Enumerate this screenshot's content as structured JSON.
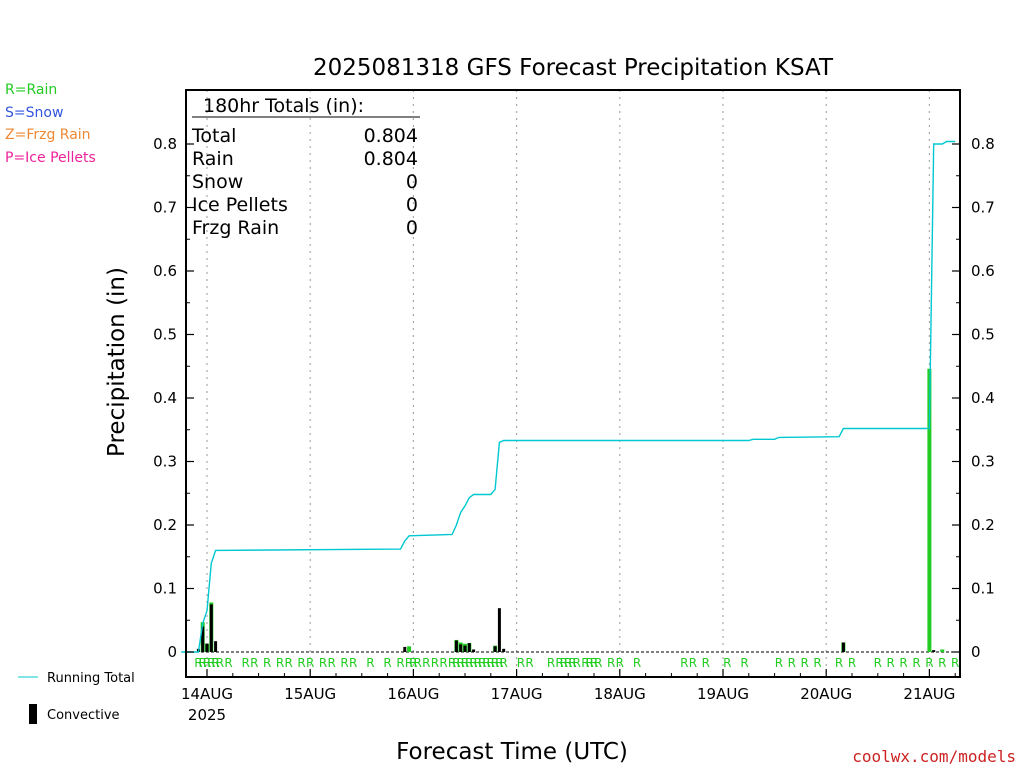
{
  "header": {
    "title": "2025081318 GFS Forecast Precipitation KSAT"
  },
  "type_legend": [
    {
      "label": "R=Rain",
      "color": "#22cc22"
    },
    {
      "label": "S=Snow",
      "color": "#3355dd"
    },
    {
      "label": "Z=Frzg Rain",
      "color": "#ee8833"
    },
    {
      "label": "P=Ice Pellets",
      "color": "#ee2299"
    }
  ],
  "totals_box": {
    "heading": "180hr Totals (in):",
    "rows": [
      {
        "label": "Total",
        "value": "0.804"
      },
      {
        "label": "Rain",
        "value": "0.804"
      },
      {
        "label": "Snow",
        "value": "0"
      },
      {
        "label": "Ice Pellets",
        "value": "0"
      },
      {
        "label": "Frzg Rain",
        "value": "0"
      }
    ]
  },
  "series_legend": {
    "running_total": "Running Total",
    "convective": "Convective"
  },
  "colors": {
    "running_total": "#00c8d0",
    "precip_bar": "#22cc22",
    "convective_bar": "#000000",
    "rain_marker": "#22cc22",
    "grid": "#aaaaaa"
  },
  "footer": {
    "credit": "coolwx.com/models"
  },
  "chart_data": {
    "type": "bar",
    "title": "2025081318 GFS Forecast Precipitation KSAT",
    "xlabel": "Forecast Time (UTC)",
    "ylabel": "Precipitation (in)",
    "ylim": [
      0,
      0.88
    ],
    "yticks": [
      0,
      0.1,
      0.2,
      0.3,
      0.4,
      0.5,
      0.6,
      0.7,
      0.8
    ],
    "ytick_labels": [
      "0",
      "0.1",
      "0.2",
      "0.3",
      "0.4",
      "0.5",
      "0.6",
      "0.7",
      "0.8"
    ],
    "x_start": "2025-08-13 18Z",
    "x_end": "2025-08-21 06Z",
    "xticks": [
      {
        "label": "14AUG",
        "sub": "2025",
        "time": "2025-08-14 00Z"
      },
      {
        "label": "15AUG",
        "time": "2025-08-15 00Z"
      },
      {
        "label": "16AUG",
        "time": "2025-08-16 00Z"
      },
      {
        "label": "17AUG",
        "time": "2025-08-17 00Z"
      },
      {
        "label": "18AUG",
        "time": "2025-08-18 00Z"
      },
      {
        "label": "19AUG",
        "time": "2025-08-19 00Z"
      },
      {
        "label": "20AUG",
        "time": "2025-08-20 00Z"
      },
      {
        "label": "21AUG",
        "time": "2025-08-21 00Z"
      }
    ],
    "grid": "vertical dotted at day boundaries",
    "series": [
      {
        "name": "Running Total",
        "type": "line",
        "points": [
          [
            "2025-08-13 18Z",
            0
          ],
          [
            "2025-08-13 22Z",
            0
          ],
          [
            "2025-08-13 23Z",
            0.045
          ],
          [
            "2025-08-14 00Z",
            0.065
          ],
          [
            "2025-08-14 01Z",
            0.14
          ],
          [
            "2025-08-14 02Z",
            0.16
          ],
          [
            "2025-08-15 21Z",
            0.162
          ],
          [
            "2025-08-15 22Z",
            0.175
          ],
          [
            "2025-08-15 23Z",
            0.183
          ],
          [
            "2025-08-16 09Z",
            0.185
          ],
          [
            "2025-08-16 10Z",
            0.2
          ],
          [
            "2025-08-16 11Z",
            0.22
          ],
          [
            "2025-08-16 12Z",
            0.23
          ],
          [
            "2025-08-16 13Z",
            0.243
          ],
          [
            "2025-08-16 14Z",
            0.248
          ],
          [
            "2025-08-16 18Z",
            0.248
          ],
          [
            "2025-08-16 19Z",
            0.256
          ],
          [
            "2025-08-16 20Z",
            0.33
          ],
          [
            "2025-08-16 21Z",
            0.333
          ],
          [
            "2025-08-19 06Z",
            0.333
          ],
          [
            "2025-08-19 07Z",
            0.335
          ],
          [
            "2025-08-19 12Z",
            0.335
          ],
          [
            "2025-08-19 13Z",
            0.338
          ],
          [
            "2025-08-20 03Z",
            0.339
          ],
          [
            "2025-08-20 04Z",
            0.352
          ],
          [
            "2025-08-21 00Z",
            0.352
          ],
          [
            "2025-08-21 01Z",
            0.8
          ],
          [
            "2025-08-21 03Z",
            0.8
          ],
          [
            "2025-08-21 04Z",
            0.804
          ],
          [
            "2025-08-21 06Z",
            0.804
          ]
        ]
      },
      {
        "name": "Precipitation",
        "type": "bar",
        "points": [
          [
            "2025-08-13 23Z",
            0.047
          ],
          [
            "2025-08-14 00Z",
            0.013
          ],
          [
            "2025-08-14 01Z",
            0.078
          ],
          [
            "2025-08-15 23Z",
            0.009
          ],
          [
            "2025-08-16 10Z",
            0.019
          ],
          [
            "2025-08-16 11Z",
            0.015
          ],
          [
            "2025-08-16 12Z",
            0.013
          ],
          [
            "2025-08-16 13Z",
            0.014
          ],
          [
            "2025-08-16 19Z",
            0.01
          ],
          [
            "2025-08-20 04Z",
            0.015
          ],
          [
            "2025-08-21 00Z",
            0.446
          ],
          [
            "2025-08-21 03Z",
            0.004
          ]
        ]
      },
      {
        "name": "Convective",
        "type": "bar",
        "points": [
          [
            "2025-08-13 22Z",
            0.005
          ],
          [
            "2025-08-13 23Z",
            0.04
          ],
          [
            "2025-08-14 00Z",
            0.013
          ],
          [
            "2025-08-14 01Z",
            0.075
          ],
          [
            "2025-08-14 02Z",
            0.017
          ],
          [
            "2025-08-15 22Z",
            0.008
          ],
          [
            "2025-08-16 10Z",
            0.018
          ],
          [
            "2025-08-16 11Z",
            0.012
          ],
          [
            "2025-08-16 12Z",
            0.01
          ],
          [
            "2025-08-16 13Z",
            0.014
          ],
          [
            "2025-08-16 14Z",
            0.004
          ],
          [
            "2025-08-16 19Z",
            0.009
          ],
          [
            "2025-08-16 20Z",
            0.069
          ],
          [
            "2025-08-16 21Z",
            0.005
          ],
          [
            "2025-08-20 04Z",
            0.015
          ],
          [
            "2025-08-21 01Z",
            0.003
          ]
        ]
      }
    ],
    "type_markers": {
      "symbol": "R",
      "times": [
        "2025-08-13 22Z",
        "2025-08-13 23Z",
        "2025-08-14 00Z",
        "2025-08-14 01Z",
        "2025-08-14 02Z",
        "2025-08-14 03Z",
        "2025-08-14 05Z",
        "2025-08-14 09Z",
        "2025-08-14 11Z",
        "2025-08-14 14Z",
        "2025-08-14 17Z",
        "2025-08-14 19Z",
        "2025-08-14 22Z",
        "2025-08-15 00Z",
        "2025-08-15 03Z",
        "2025-08-15 05Z",
        "2025-08-15 08Z",
        "2025-08-15 10Z",
        "2025-08-15 14Z",
        "2025-08-15 18Z",
        "2025-08-15 21Z",
        "2025-08-15 23Z",
        "2025-08-16 00Z",
        "2025-08-16 01Z",
        "2025-08-16 03Z",
        "2025-08-16 05Z",
        "2025-08-16 07Z",
        "2025-08-16 09Z",
        "2025-08-16 10Z",
        "2025-08-16 11Z",
        "2025-08-16 12Z",
        "2025-08-16 13Z",
        "2025-08-16 14Z",
        "2025-08-16 15Z",
        "2025-08-16 16Z",
        "2025-08-16 17Z",
        "2025-08-16 18Z",
        "2025-08-16 19Z",
        "2025-08-16 20Z",
        "2025-08-16 21Z",
        "2025-08-17 01Z",
        "2025-08-17 03Z",
        "2025-08-17 08Z",
        "2025-08-17 10Z",
        "2025-08-17 11Z",
        "2025-08-17 12Z",
        "2025-08-17 13Z",
        "2025-08-17 14Z",
        "2025-08-17 16Z",
        "2025-08-17 17Z",
        "2025-08-17 18Z",
        "2025-08-17 19Z",
        "2025-08-17 22Z",
        "2025-08-18 00Z",
        "2025-08-18 04Z",
        "2025-08-18 15Z",
        "2025-08-18 17Z",
        "2025-08-18 20Z",
        "2025-08-19 01Z",
        "2025-08-19 05Z",
        "2025-08-19 13Z",
        "2025-08-19 16Z",
        "2025-08-19 19Z",
        "2025-08-19 22Z",
        "2025-08-20 03Z",
        "2025-08-20 06Z",
        "2025-08-20 12Z",
        "2025-08-20 15Z",
        "2025-08-20 18Z",
        "2025-08-20 21Z",
        "2025-08-21 00Z",
        "2025-08-21 03Z",
        "2025-08-21 06Z"
      ]
    }
  }
}
